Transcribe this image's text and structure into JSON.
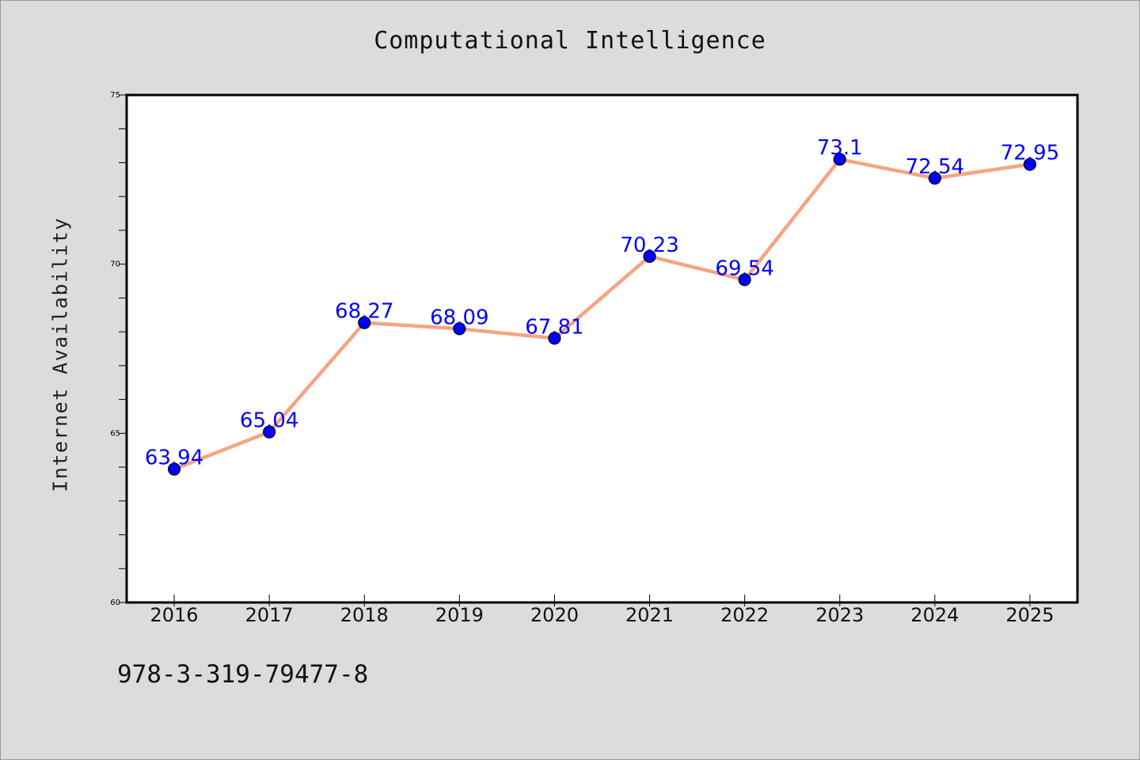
{
  "chart_data": {
    "type": "line",
    "title": "Computational Intelligence",
    "xlabel": "",
    "ylabel": "Internet Availability",
    "categories": [
      "2016",
      "2017",
      "2018",
      "2019",
      "2020",
      "2021",
      "2022",
      "2023",
      "2024",
      "2025"
    ],
    "values": [
      63.94,
      65.04,
      68.27,
      68.09,
      67.81,
      70.23,
      69.54,
      73.1,
      72.54,
      72.95
    ],
    "data_labels": [
      "63.94",
      "65.04",
      "68.27",
      "68.09",
      "67.81",
      "70.23",
      "69.54",
      "73.1",
      "72.54",
      "72.95"
    ],
    "ylim": [
      60,
      75
    ],
    "yticks": [
      "60",
      "65",
      "70",
      "75"
    ],
    "grid": false,
    "line_color": "#f4a582",
    "marker_color": "#0000ff",
    "label_color": "#0000ff",
    "background_color": "#dcdcdc",
    "plot_background_color": "#ffffff"
  },
  "footer_text": "978-3-319-79477-8"
}
